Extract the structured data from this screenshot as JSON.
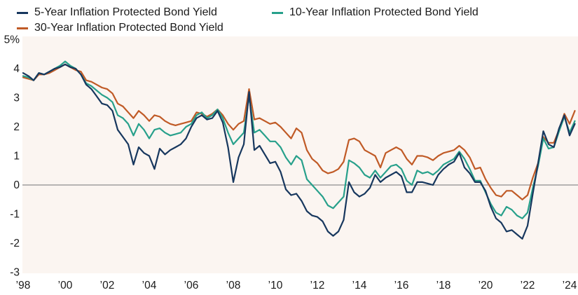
{
  "chart_data": {
    "type": "line",
    "title": "",
    "xlabel": "",
    "ylabel": "",
    "grid": false,
    "legend_position": "top-left",
    "plot_bg": "#fbf5f1",
    "zero_line_color": "#8e8e8e",
    "y_axis": {
      "min": -3,
      "max": 5,
      "ticks": [
        {
          "label": "5%",
          "value": 5
        },
        {
          "label": "4",
          "value": 4
        },
        {
          "label": "3",
          "value": 3
        },
        {
          "label": "2",
          "value": 2
        },
        {
          "label": "1",
          "value": 1
        },
        {
          "label": "0",
          "value": 0
        },
        {
          "label": "-1",
          "value": -1
        },
        {
          "label": "-2",
          "value": -2
        },
        {
          "label": "-3",
          "value": -3
        }
      ]
    },
    "x_axis": {
      "ticks": [
        {
          "label": "’98",
          "year": 1998
        },
        {
          "label": "’00",
          "year": 2000
        },
        {
          "label": "’02",
          "year": 2002
        },
        {
          "label": "’04",
          "year": 2004
        },
        {
          "label": "’06",
          "year": 2006
        },
        {
          "label": "’08",
          "year": 2008
        },
        {
          "label": "’10",
          "year": 2010
        },
        {
          "label": "’12",
          "year": 2012
        },
        {
          "label": "’14",
          "year": 2014
        },
        {
          "label": "’16",
          "year": 2016
        },
        {
          "label": "’18",
          "year": 2018
        },
        {
          "label": "’20",
          "year": 2020
        },
        {
          "label": "’22",
          "year": 2022
        },
        {
          "label": "’24",
          "year": 2024
        }
      ]
    },
    "x": [
      1998,
      1998.25,
      1998.5,
      1998.75,
      1999,
      1999.25,
      1999.5,
      1999.75,
      2000,
      2000.25,
      2000.5,
      2000.75,
      2001,
      2001.25,
      2001.5,
      2001.75,
      2002,
      2002.25,
      2002.5,
      2002.75,
      2003,
      2003.25,
      2003.5,
      2003.75,
      2004,
      2004.25,
      2004.5,
      2004.75,
      2005,
      2005.25,
      2005.5,
      2005.75,
      2006,
      2006.25,
      2006.5,
      2006.75,
      2007,
      2007.25,
      2007.5,
      2007.75,
      2008,
      2008.25,
      2008.5,
      2008.75,
      2009,
      2009.25,
      2009.5,
      2009.75,
      2010,
      2010.25,
      2010.5,
      2010.75,
      2011,
      2011.25,
      2011.5,
      2011.75,
      2012,
      2012.25,
      2012.5,
      2012.75,
      2013,
      2013.25,
      2013.5,
      2013.75,
      2014,
      2014.25,
      2014.5,
      2014.75,
      2015,
      2015.25,
      2015.5,
      2015.75,
      2016,
      2016.25,
      2016.5,
      2016.75,
      2017,
      2017.25,
      2017.5,
      2017.75,
      2018,
      2018.25,
      2018.5,
      2018.75,
      2019,
      2019.25,
      2019.5,
      2019.75,
      2020,
      2020.25,
      2020.5,
      2020.75,
      2021,
      2021.25,
      2021.5,
      2021.75,
      2022,
      2022.25,
      2022.5,
      2022.75,
      2023,
      2023.25,
      2023.5,
      2023.75,
      2024,
      2024.25
    ],
    "series": [
      {
        "name": "5-Year Inflation Protected Bond Yield",
        "color": "#17375e",
        "values": [
          3.85,
          3.75,
          3.6,
          3.85,
          3.8,
          3.9,
          4.0,
          4.05,
          4.15,
          4.05,
          4.0,
          3.8,
          3.45,
          3.3,
          3.05,
          2.8,
          2.75,
          2.55,
          1.9,
          1.65,
          1.4,
          0.7,
          1.3,
          1.1,
          1.0,
          0.55,
          1.25,
          1.05,
          1.2,
          1.3,
          1.4,
          1.6,
          2.0,
          2.3,
          2.4,
          2.25,
          2.3,
          2.55,
          2.15,
          1.3,
          0.1,
          0.95,
          1.4,
          3.2,
          1.2,
          1.35,
          1.05,
          0.75,
          0.8,
          0.45,
          -0.15,
          -0.35,
          -0.3,
          -0.55,
          -0.9,
          -1.05,
          -1.1,
          -1.25,
          -1.6,
          -1.75,
          -1.6,
          -1.2,
          0.1,
          -0.25,
          -0.4,
          -0.3,
          -0.1,
          0.35,
          0.1,
          0.25,
          0.35,
          0.45,
          0.3,
          -0.25,
          -0.25,
          0.1,
          0.1,
          0.05,
          0.0,
          0.35,
          0.55,
          0.7,
          0.8,
          1.1,
          0.6,
          0.4,
          0.1,
          0.1,
          -0.2,
          -0.75,
          -1.15,
          -1.3,
          -1.6,
          -1.55,
          -1.7,
          -1.85,
          -1.4,
          -0.3,
          0.75,
          1.85,
          1.4,
          1.3,
          1.95,
          2.4,
          1.7,
          2.1
        ]
      },
      {
        "name": "10-Year Inflation Protected Bond Yield",
        "color": "#27a08b",
        "values": [
          3.75,
          3.7,
          3.6,
          3.85,
          3.8,
          3.9,
          4.0,
          4.1,
          4.25,
          4.1,
          4.0,
          3.8,
          3.5,
          3.4,
          3.25,
          3.1,
          3.0,
          2.85,
          2.4,
          2.3,
          2.1,
          1.7,
          2.1,
          1.9,
          1.6,
          1.9,
          1.95,
          1.8,
          1.7,
          1.75,
          1.8,
          2.0,
          2.1,
          2.4,
          2.5,
          2.3,
          2.4,
          2.6,
          2.3,
          1.8,
          1.4,
          1.6,
          1.8,
          3.05,
          1.8,
          1.9,
          1.7,
          1.5,
          1.5,
          1.3,
          0.95,
          0.7,
          1.0,
          0.85,
          0.2,
          0.0,
          -0.2,
          -0.4,
          -0.7,
          -0.8,
          -0.6,
          -0.4,
          0.85,
          0.75,
          0.6,
          0.35,
          0.25,
          0.5,
          0.25,
          0.45,
          0.65,
          0.7,
          0.55,
          0.15,
          0.0,
          0.5,
          0.4,
          0.45,
          0.35,
          0.5,
          0.7,
          0.8,
          0.9,
          1.15,
          0.9,
          0.55,
          0.15,
          0.15,
          -0.25,
          -0.65,
          -0.95,
          -1.05,
          -0.75,
          -0.85,
          -1.05,
          -1.15,
          -0.95,
          -0.1,
          0.65,
          1.6,
          1.25,
          1.3,
          1.85,
          2.35,
          1.8,
          2.2
        ]
      },
      {
        "name": "30-Year Inflation Protected Bond Yield",
        "color": "#c05a26",
        "values": [
          3.7,
          3.65,
          3.6,
          3.8,
          3.8,
          3.85,
          3.95,
          4.05,
          4.15,
          4.05,
          3.95,
          3.9,
          3.6,
          3.55,
          3.45,
          3.35,
          3.3,
          3.15,
          2.8,
          2.7,
          2.5,
          2.3,
          2.55,
          2.4,
          2.2,
          2.4,
          2.35,
          2.2,
          2.1,
          2.05,
          2.1,
          2.15,
          2.2,
          2.5,
          2.45,
          2.35,
          2.45,
          2.6,
          2.4,
          2.1,
          1.9,
          2.1,
          2.2,
          3.3,
          2.25,
          2.3,
          2.2,
          2.1,
          2.15,
          2.0,
          1.8,
          1.6,
          1.95,
          1.8,
          1.2,
          0.9,
          0.75,
          0.5,
          0.4,
          0.45,
          0.55,
          0.8,
          1.55,
          1.6,
          1.5,
          1.2,
          1.1,
          1.0,
          0.6,
          1.1,
          1.2,
          1.3,
          1.2,
          0.9,
          0.7,
          1.0,
          1.0,
          0.95,
          0.85,
          1.0,
          1.1,
          1.15,
          1.2,
          1.35,
          1.2,
          0.95,
          0.55,
          0.6,
          0.2,
          -0.1,
          -0.35,
          -0.4,
          -0.2,
          -0.2,
          -0.35,
          -0.5,
          -0.35,
          0.25,
          0.75,
          1.65,
          1.45,
          1.45,
          1.9,
          2.45,
          2.1,
          2.55
        ]
      }
    ]
  }
}
